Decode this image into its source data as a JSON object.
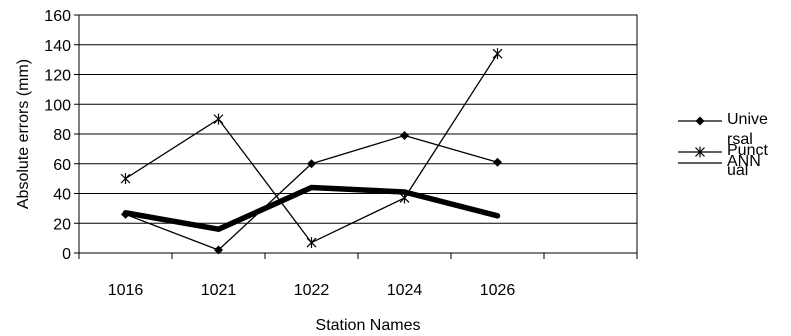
{
  "chart_data": {
    "type": "line",
    "xlabel": "Station Names",
    "ylabel": "Absolute errors (mm)",
    "categories": [
      "1016",
      "1021",
      "1022",
      "1024",
      "1026"
    ],
    "x_slots": 6,
    "ylim": [
      0,
      160
    ],
    "yticks": [
      0,
      20,
      40,
      60,
      80,
      100,
      120,
      140,
      160
    ],
    "grid": true,
    "legend_position": "right",
    "series": [
      {
        "name": "Universal",
        "legend_lines": [
          "Unive",
          "rsal"
        ],
        "values": [
          26,
          2,
          60,
          79,
          61
        ],
        "marker": "diamond",
        "color": "#000000",
        "width": 1.3
      },
      {
        "name": "Punctual",
        "legend_lines": [
          "Punct",
          "ual"
        ],
        "values": [
          50,
          90,
          7,
          37,
          134
        ],
        "marker": "asterisk",
        "color": "#000000",
        "width": 1.3
      },
      {
        "name": "ANN",
        "legend_lines": [
          "ANN"
        ],
        "values": [
          27,
          16,
          44,
          41,
          25
        ],
        "marker": "none",
        "color": "#000000",
        "width": 5.5
      }
    ]
  }
}
